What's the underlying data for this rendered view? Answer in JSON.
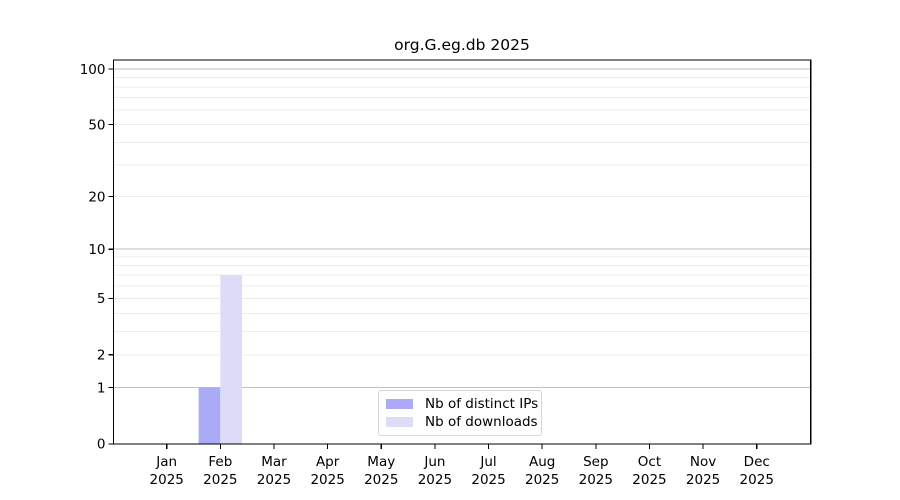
{
  "title": "org.G.eg.db 2025",
  "chart_data": {
    "type": "bar",
    "title": "org.G.eg.db 2025",
    "x_tick_line1": [
      "Jan",
      "Feb",
      "Mar",
      "Apr",
      "May",
      "Jun",
      "Jul",
      "Aug",
      "Sep",
      "Oct",
      "Nov",
      "Dec"
    ],
    "x_tick_line2": "2025",
    "categories": [
      "Jan 2025",
      "Feb 2025",
      "Mar 2025",
      "Apr 2025",
      "May 2025",
      "Jun 2025",
      "Jul 2025",
      "Aug 2025",
      "Sep 2025",
      "Oct 2025",
      "Nov 2025",
      "Dec 2025"
    ],
    "series": [
      {
        "name": "Nb of distinct IPs",
        "color": "#aaaaf6",
        "values": [
          0,
          1,
          0,
          0,
          0,
          0,
          0,
          0,
          0,
          0,
          0,
          0
        ]
      },
      {
        "name": "Nb of downloads",
        "color": "#dcdcf8",
        "values": [
          0,
          7,
          0,
          0,
          0,
          0,
          0,
          0,
          0,
          0,
          0,
          0
        ]
      }
    ],
    "y_scale": "log1p",
    "ylim": [
      0,
      112
    ],
    "y_major_ticks": [
      0,
      1,
      2,
      5,
      10,
      20,
      50,
      100
    ],
    "y_gridlines_major": [
      1,
      10,
      100
    ],
    "y_gridlines_minor": [
      2,
      3,
      4,
      5,
      6,
      7,
      8,
      9,
      20,
      30,
      40,
      50,
      60,
      70,
      80,
      90
    ],
    "grid": true,
    "legend_position": "inside-bottom-center"
  },
  "legend": {
    "items": [
      {
        "label": "Nb of distinct IPs",
        "swatch": "#aaaaf6"
      },
      {
        "label": "Nb of downloads",
        "swatch": "#dcdcf8"
      }
    ]
  },
  "colors": {
    "background": "#ffffff",
    "axis": "#000000",
    "grid_major": "#bfbfbf",
    "grid_minor": "#ececec",
    "bar_distinct_ips": "#aaaaf6",
    "bar_downloads": "#dcdcf8",
    "legend_border": "#d6d6d6"
  }
}
